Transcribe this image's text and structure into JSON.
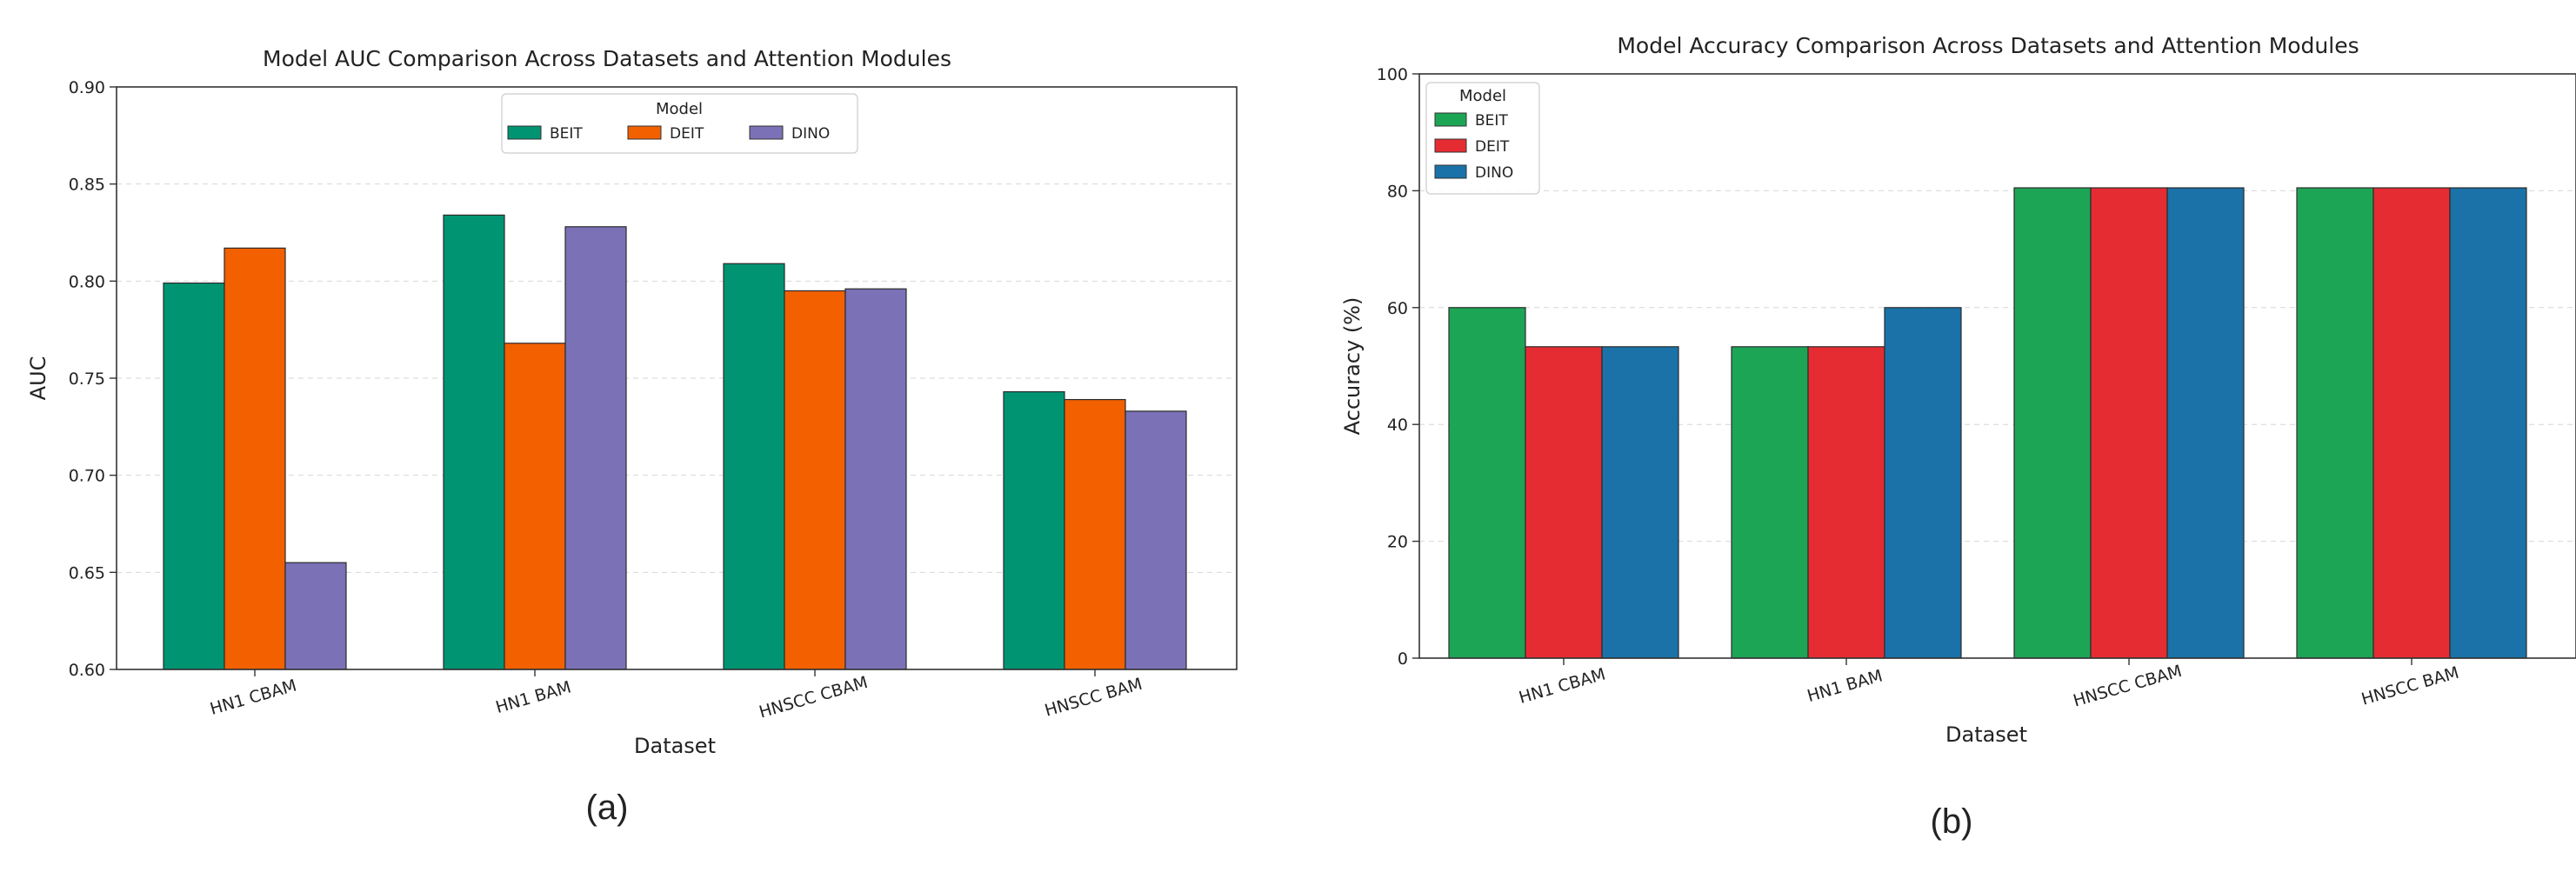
{
  "chart_data": [
    {
      "type": "bar",
      "title": "Model AUC Comparison Across Datasets and Attention Modules",
      "xlabel": "Dataset",
      "ylabel": "AUC",
      "ylim": [
        0.6,
        0.9
      ],
      "yticks": [
        "0.60",
        "0.65",
        "0.70",
        "0.75",
        "0.80",
        "0.85",
        "0.90"
      ],
      "grid": true,
      "legend": {
        "title": "Model",
        "placement": "top-center",
        "orientation": "horizontal"
      },
      "categories": [
        "HN1 CBAM",
        "HN1 BAM",
        "HNSCC CBAM",
        "HNSCC BAM"
      ],
      "series": [
        {
          "name": "BEIT",
          "color": "#009473",
          "values": [
            0.799,
            0.834,
            0.809,
            0.743
          ]
        },
        {
          "name": "DEIT",
          "color": "#f26000",
          "values": [
            0.817,
            0.768,
            0.795,
            0.739
          ]
        },
        {
          "name": "DINO",
          "color": "#7a71b7",
          "values": [
            0.655,
            0.828,
            0.796,
            0.733
          ]
        }
      ],
      "caption": "(a)"
    },
    {
      "type": "bar",
      "title": "Model Accuracy Comparison Across Datasets and Attention Modules",
      "xlabel": "Dataset",
      "ylabel": "Accuracy (%)",
      "ylim": [
        0,
        100
      ],
      "yticks": [
        "0",
        "20",
        "40",
        "60",
        "80",
        "100"
      ],
      "grid": true,
      "legend": {
        "title": "Model",
        "placement": "top-left",
        "orientation": "vertical"
      },
      "categories": [
        "HN1 CBAM",
        "HN1 BAM",
        "HNSCC CBAM",
        "HNSCC BAM"
      ],
      "series": [
        {
          "name": "BEIT",
          "color": "#1da556",
          "values": [
            60.0,
            53.3,
            80.5,
            80.5
          ]
        },
        {
          "name": "DEIT",
          "color": "#e62c33",
          "values": [
            53.3,
            53.3,
            80.5,
            80.5
          ]
        },
        {
          "name": "DINO",
          "color": "#1a72a8",
          "values": [
            53.3,
            60.0,
            80.5,
            80.5
          ]
        }
      ],
      "caption": "(b)"
    }
  ]
}
